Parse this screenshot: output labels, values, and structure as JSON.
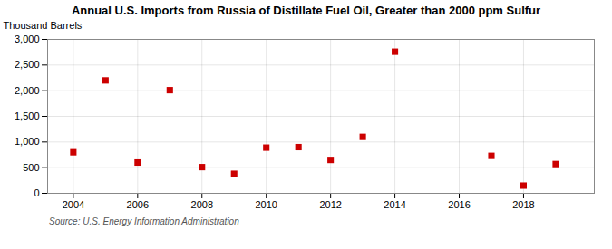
{
  "chart_data": {
    "type": "scatter",
    "title": "Annual U.S. Imports from Russia of Distillate Fuel Oil, Greater than 2000 ppm Sulfur",
    "ylabel": "Thousand Barrels",
    "source": "Source: U.S. Energy Information Administration",
    "x": [
      2004,
      2005,
      2006,
      2007,
      2008,
      2009,
      2010,
      2011,
      2012,
      2013,
      2014,
      2017,
      2018,
      2019
    ],
    "values": [
      800,
      2200,
      600,
      2010,
      510,
      380,
      890,
      900,
      650,
      1100,
      2760,
      730,
      150,
      570
    ],
    "color": "#cc0000",
    "marker": "square",
    "xlim": [
      2003.2,
      2020.2
    ],
    "xticks": [
      2004,
      2006,
      2008,
      2010,
      2012,
      2014,
      2016,
      2018
    ],
    "ylim": [
      0,
      3000
    ],
    "yticks": [
      0,
      500,
      {
        "value": 1000,
        "label": "1,000"
      },
      {
        "value": 1500,
        "label": "1,500"
      },
      {
        "value": 2000,
        "label": "2,000"
      },
      {
        "value": 2500,
        "label": "2,500"
      },
      {
        "value": 3000,
        "label": "3,000"
      }
    ],
    "grid": true
  }
}
